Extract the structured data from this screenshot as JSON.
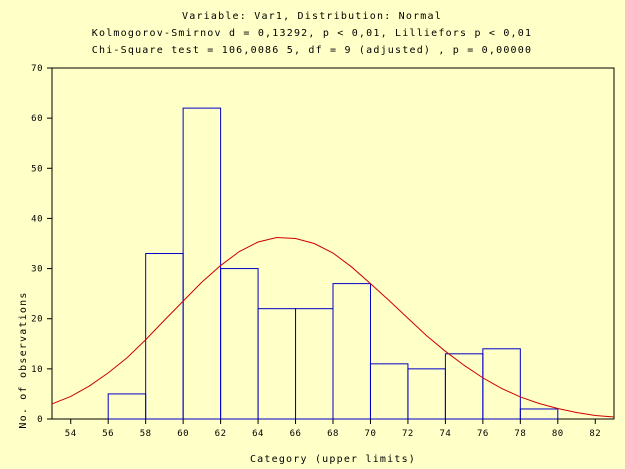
{
  "chart_data": {
    "type": "bar",
    "title_lines": [
      "Variable: Var1, Distribution: Normal",
      "Kolmogorov-Smirnov d = 0,13292, p < 0,01, Lilliefors p < 0,01",
      "Chi-Square test = 106,0086 5, df = 9 (adjusted) , p = 0,00000"
    ],
    "xlabel": "Category (upper limits)",
    "ylabel": "No. of observations",
    "ylim": [
      0,
      70
    ],
    "yticks": [
      0,
      10,
      20,
      30,
      40,
      50,
      60,
      70
    ],
    "ytick_labels": [
      "0",
      "10",
      "20",
      "30",
      "40",
      "50",
      "60",
      "70"
    ],
    "xlim": [
      53,
      83
    ],
    "xticks": [
      54,
      56,
      58,
      60,
      62,
      64,
      66,
      68,
      70,
      72,
      74,
      76,
      78,
      80,
      82
    ],
    "xtick_labels": [
      "54",
      "56",
      "58",
      "60",
      "62",
      "64",
      "66",
      "68",
      "70",
      "72",
      "74",
      "76",
      "78",
      "80",
      "82"
    ],
    "bin_upper_limits": [
      54,
      56,
      58,
      60,
      62,
      64,
      66,
      68,
      70,
      72,
      74,
      76,
      78,
      80,
      82
    ],
    "values": [
      0,
      0,
      5,
      33,
      62,
      30,
      22,
      22,
      27,
      11,
      10,
      13,
      14,
      2,
      0
    ],
    "bar_color": "#0000C8",
    "curve_color": "#D00000",
    "background_color": "#FFFFC8",
    "fitted_normal": {
      "curve_x": [
        53,
        54,
        55,
        56,
        57,
        58,
        59,
        60,
        61,
        62,
        63,
        64,
        65,
        66,
        67,
        68,
        69,
        70,
        71,
        72,
        73,
        74,
        75,
        76,
        77,
        78,
        79,
        80,
        81,
        82,
        83
      ],
      "curve_y": [
        3,
        4.5,
        6.6,
        9.2,
        12.2,
        15.8,
        19.7,
        23.5,
        27.3,
        30.6,
        33.4,
        35.3,
        36.2,
        36.0,
        35.0,
        33.1,
        30.3,
        27.0,
        23.6,
        20.1,
        16.6,
        13.5,
        10.7,
        8.2,
        6.1,
        4.4,
        3.1,
        2.1,
        1.3,
        0.7,
        0.4
      ]
    }
  }
}
